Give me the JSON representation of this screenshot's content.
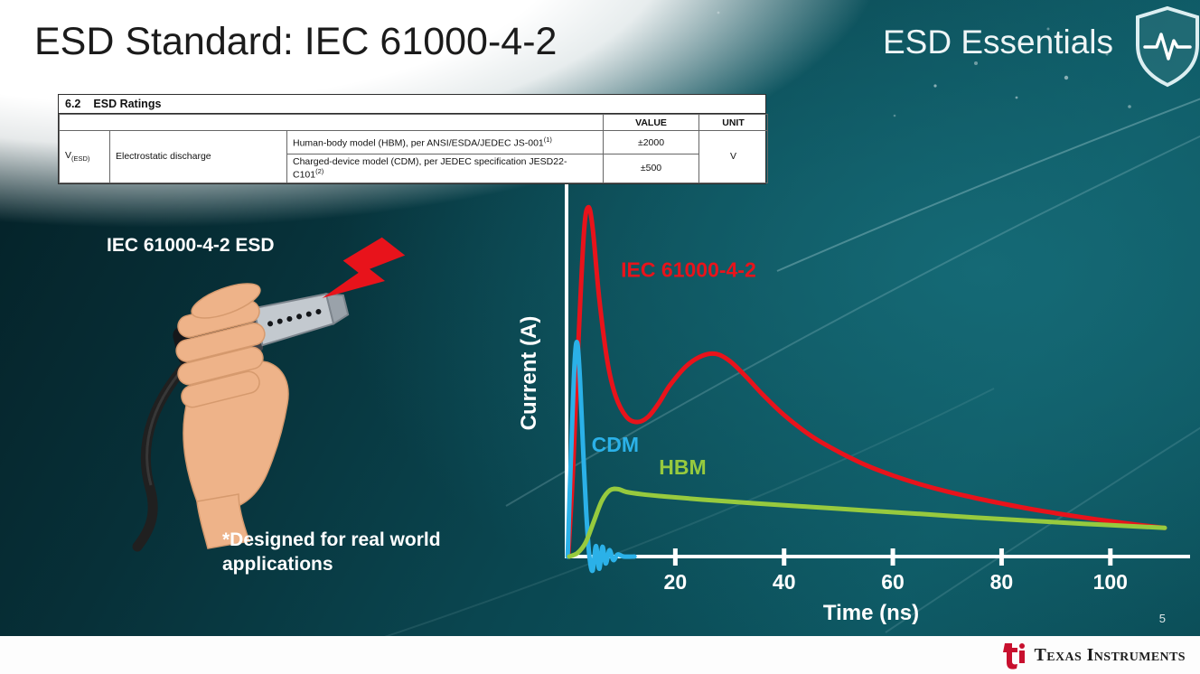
{
  "header": {
    "title": "ESD Standard: IEC 61000-4-2",
    "brand": "ESD Essentials",
    "shield_icon": "shield-pulse"
  },
  "ratings_table": {
    "section_number": "6.2",
    "section_title": "ESD Ratings",
    "col_value": "VALUE",
    "col_unit": "UNIT",
    "param_symbol": "V",
    "param_symbol_sub": "(ESD)",
    "param_name": "Electrostatic discharge",
    "rows": [
      {
        "description": "Human-body model (HBM), per ANSI/ESDA/JEDEC JS-001",
        "footnote": "(1)",
        "value": "±2000"
      },
      {
        "description": "Charged-device model (CDM), per JEDEC specification JESD22-C101",
        "footnote": "(2)",
        "value": "±500"
      }
    ],
    "unit": "V"
  },
  "illustration": {
    "caption": "IEC 61000-4-2 ESD",
    "icon": "hand-holding-hdmi-with-esd-bolt",
    "bolt_color": "#e8131b"
  },
  "note": {
    "line1": "*Designed for real world",
    "line2": "applications"
  },
  "footer": {
    "brand": "Texas Instruments",
    "logo_icon": "ti-logo",
    "page_number": "5"
  },
  "theme": {
    "background_teal": "#0a4650",
    "ti_red": "#c8102e",
    "slide_text_light": "#ffffff"
  },
  "chart_data": {
    "type": "line",
    "title": "",
    "xlabel": "Time (ns)",
    "ylabel": "Current (A)",
    "x_ticks": [
      20,
      40,
      60,
      80,
      100
    ],
    "xlim": [
      0,
      112
    ],
    "ylim": [
      0,
      1.05
    ],
    "grid": false,
    "legend": "inline-labels",
    "axis_color": "#ffffff",
    "series": [
      {
        "name": "IEC 61000-4-2",
        "color": "#e8131b",
        "label_pos": [
          10,
          0.8
        ],
        "points": [
          [
            0.3,
            0
          ],
          [
            1.2,
            0.25
          ],
          [
            2.2,
            0.62
          ],
          [
            3.2,
            0.93
          ],
          [
            4,
            1
          ],
          [
            4.8,
            0.94
          ],
          [
            6,
            0.74
          ],
          [
            7.5,
            0.56
          ],
          [
            9,
            0.46
          ],
          [
            11,
            0.4
          ],
          [
            13,
            0.385
          ],
          [
            15,
            0.4
          ],
          [
            17,
            0.44
          ],
          [
            19,
            0.49
          ],
          [
            22,
            0.545
          ],
          [
            25,
            0.575
          ],
          [
            27.5,
            0.58
          ],
          [
            30,
            0.56
          ],
          [
            33,
            0.515
          ],
          [
            36,
            0.465
          ],
          [
            40,
            0.405
          ],
          [
            45,
            0.345
          ],
          [
            50,
            0.3
          ],
          [
            55,
            0.262
          ],
          [
            60,
            0.232
          ],
          [
            65,
            0.207
          ],
          [
            70,
            0.186
          ],
          [
            75,
            0.168
          ],
          [
            80,
            0.152
          ],
          [
            85,
            0.137
          ],
          [
            90,
            0.124
          ],
          [
            95,
            0.112
          ],
          [
            100,
            0.101
          ],
          [
            105,
            0.091
          ],
          [
            110,
            0.082
          ]
        ]
      },
      {
        "name": "CDM",
        "color": "#2bb1e8",
        "label_pos": [
          4.6,
          0.3
        ],
        "points": [
          [
            0.2,
            0
          ],
          [
            0.8,
            0.28
          ],
          [
            1.5,
            0.56
          ],
          [
            2,
            0.61
          ],
          [
            2.5,
            0.5
          ],
          [
            3,
            0.32
          ],
          [
            3.6,
            0.13
          ],
          [
            4.2,
            0
          ],
          [
            4.8,
            -0.04
          ],
          [
            5.4,
            0.03
          ],
          [
            6,
            -0.035
          ],
          [
            6.6,
            0.028
          ],
          [
            7.2,
            -0.02
          ],
          [
            7.9,
            0.018
          ],
          [
            8.6,
            -0.01
          ],
          [
            9.4,
            0.006
          ],
          [
            10.5,
            0
          ],
          [
            12.5,
            0
          ]
        ]
      },
      {
        "name": "HBM",
        "color": "#97ca3e",
        "label_pos": [
          17,
          0.235
        ],
        "points": [
          [
            0.5,
            0
          ],
          [
            2,
            0.01
          ],
          [
            3.5,
            0.04
          ],
          [
            5,
            0.1
          ],
          [
            6.5,
            0.16
          ],
          [
            8,
            0.19
          ],
          [
            9.5,
            0.193
          ],
          [
            11,
            0.185
          ],
          [
            14,
            0.178
          ],
          [
            18,
            0.172
          ],
          [
            25,
            0.163
          ],
          [
            35,
            0.152
          ],
          [
            45,
            0.142
          ],
          [
            55,
            0.132
          ],
          [
            65,
            0.122
          ],
          [
            75,
            0.112
          ],
          [
            85,
            0.103
          ],
          [
            95,
            0.094
          ],
          [
            105,
            0.086
          ],
          [
            110,
            0.082
          ]
        ]
      }
    ]
  }
}
